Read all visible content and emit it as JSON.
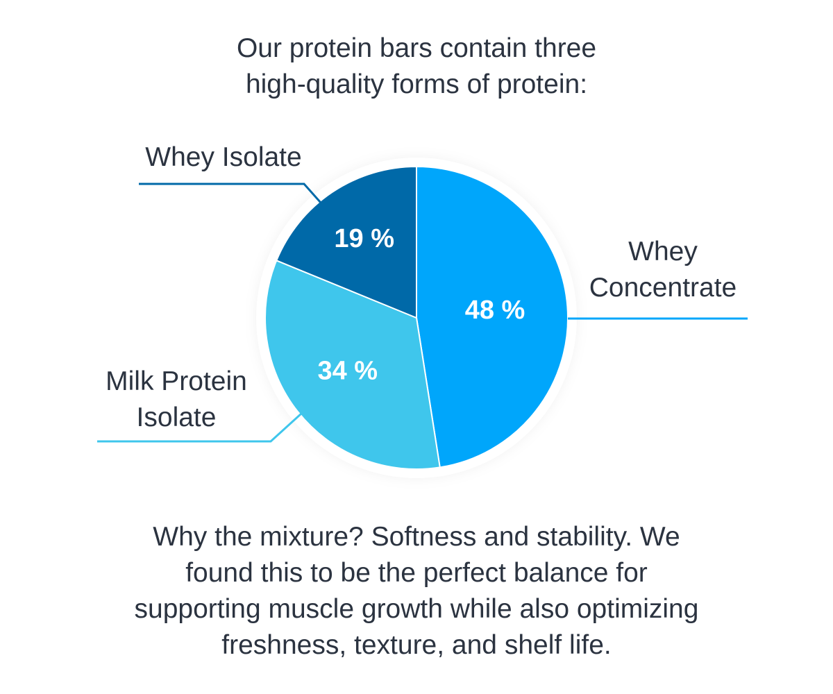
{
  "title_lines": [
    "Our protein bars contain three",
    "high-quality forms of protein:"
  ],
  "caption_lines": [
    "Why the mixture? Softness and stability. We",
    "found this to be the perfect balance for",
    "supporting muscle growth while also optimizing",
    "freshness, texture, and shelf life."
  ],
  "chart_data": {
    "type": "pie",
    "slices": [
      {
        "label_lines": [
          "Whey",
          "Concentrate"
        ],
        "value": 48,
        "value_label": "48 %",
        "color": "#00a6fb"
      },
      {
        "label_lines": [
          "Milk Protein",
          "Isolate"
        ],
        "value": 34,
        "value_label": "34 %",
        "color": "#3fc6ec"
      },
      {
        "label_lines": [
          "Whey Isolate"
        ],
        "value": 19,
        "value_label": "19 %",
        "color": "#0069a8"
      }
    ],
    "start": "12 o'clock",
    "direction": "clockwise",
    "legend": "callout lines beside slices"
  }
}
